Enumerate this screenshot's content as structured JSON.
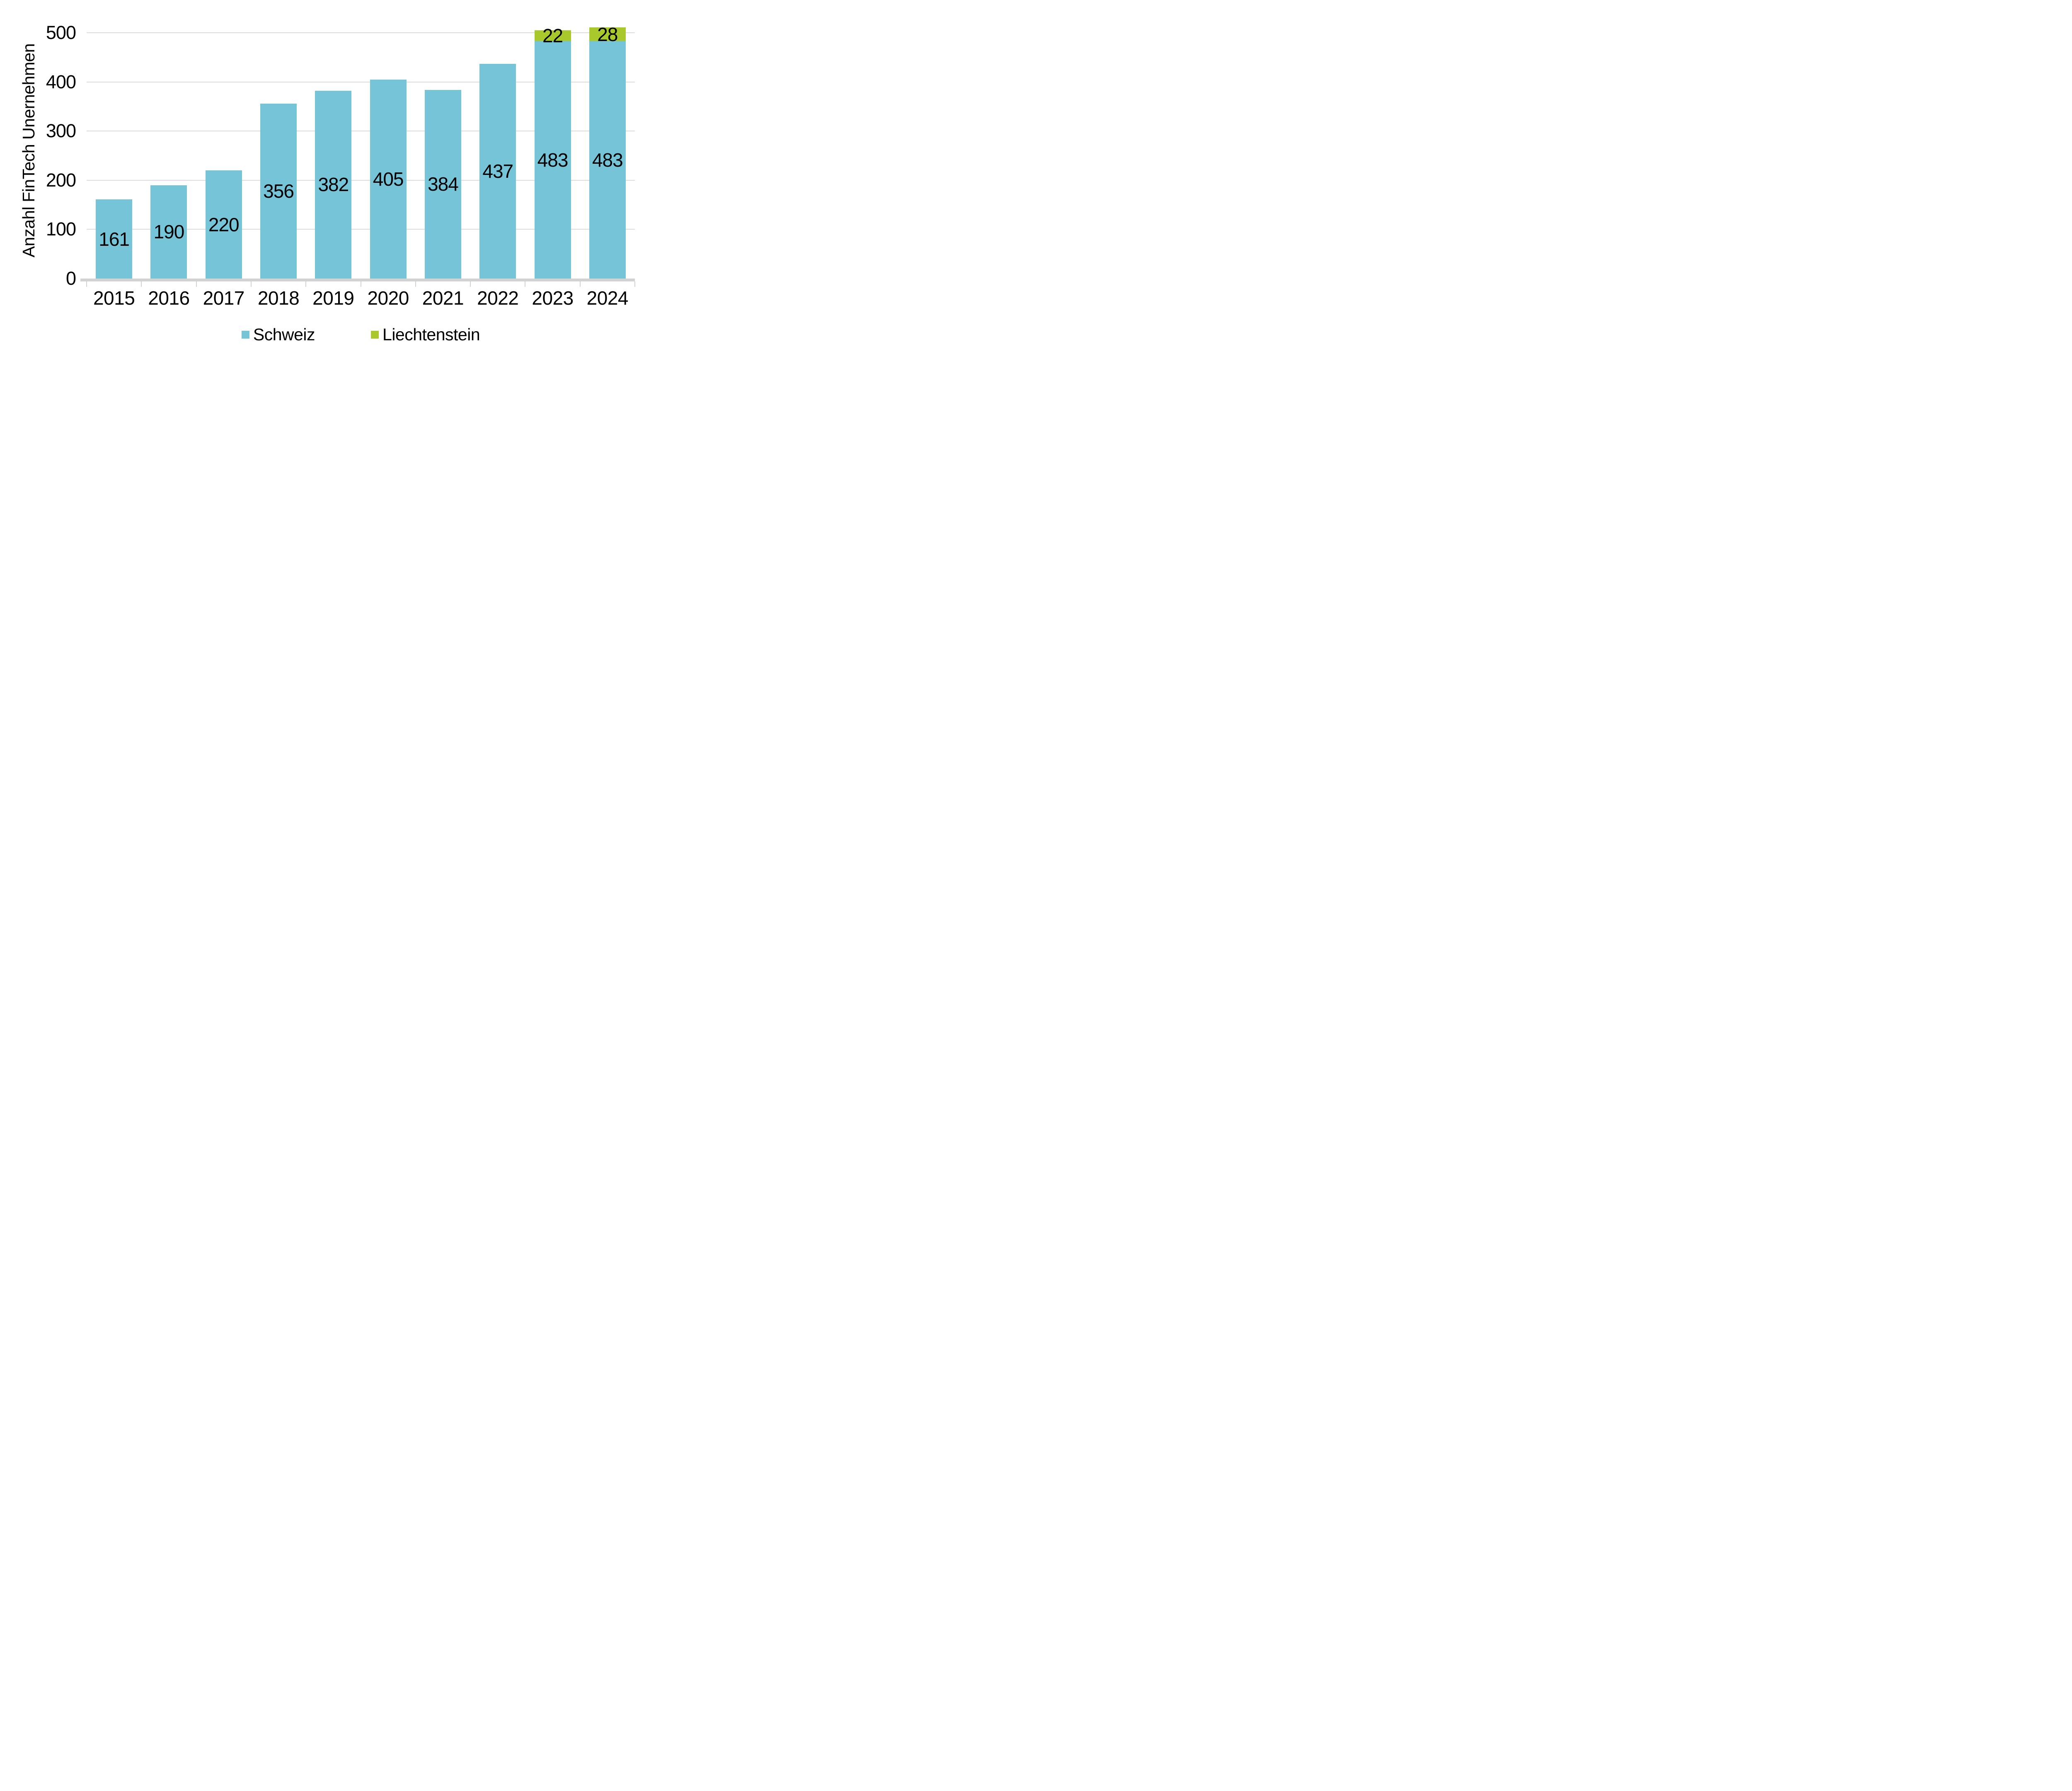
{
  "chart_data": {
    "type": "bar",
    "stacked": true,
    "title": "",
    "xlabel": "",
    "ylabel": "Anzahl FinTech Unernehmen",
    "categories": [
      "2015",
      "2016",
      "2017",
      "2018",
      "2019",
      "2020",
      "2021",
      "2022",
      "2023",
      "2024"
    ],
    "series": [
      {
        "name": "Schweiz",
        "color": "#76C4D8",
        "values": [
          161,
          190,
          220,
          356,
          382,
          405,
          384,
          437,
          483,
          483
        ]
      },
      {
        "name": "Liechtenstein",
        "color": "#A8C82C",
        "values": [
          0,
          0,
          0,
          0,
          0,
          0,
          0,
          0,
          22,
          28
        ]
      }
    ],
    "y_ticks": [
      0,
      100,
      200,
      300,
      400,
      500
    ],
    "ylim": [
      0,
      500
    ],
    "grid": true,
    "legend_position": "bottom",
    "data_label_position": "center",
    "colors": {
      "gridline": "#DCDCDC",
      "axis_line": "#D2D2D2",
      "tick": "#D2D2D2",
      "text": "#000000",
      "background": "#FFFFFF"
    }
  }
}
